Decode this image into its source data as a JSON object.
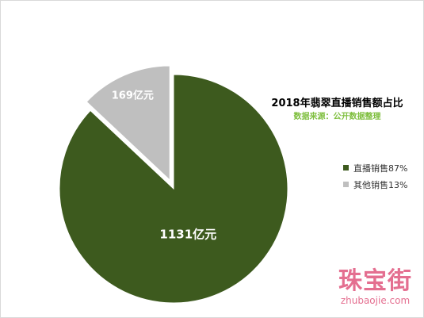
{
  "chart_data": {
    "type": "pie",
    "title": "2018年翡翠直播销售额占比",
    "subtitle": "数据来源：公开数据整理",
    "slices": [
      {
        "name": "直播销售87%",
        "value": 1131,
        "label": "1131亿元",
        "color": "#3d5a1e",
        "exploded": false
      },
      {
        "name": "其他销售13%",
        "value": 169,
        "label": "169亿元",
        "color": "#bfbfbf",
        "exploded": true
      }
    ],
    "legend_position": "right"
  },
  "watermark": {
    "logo_text": "珠宝街",
    "url_text": "zhubaojie.com"
  }
}
